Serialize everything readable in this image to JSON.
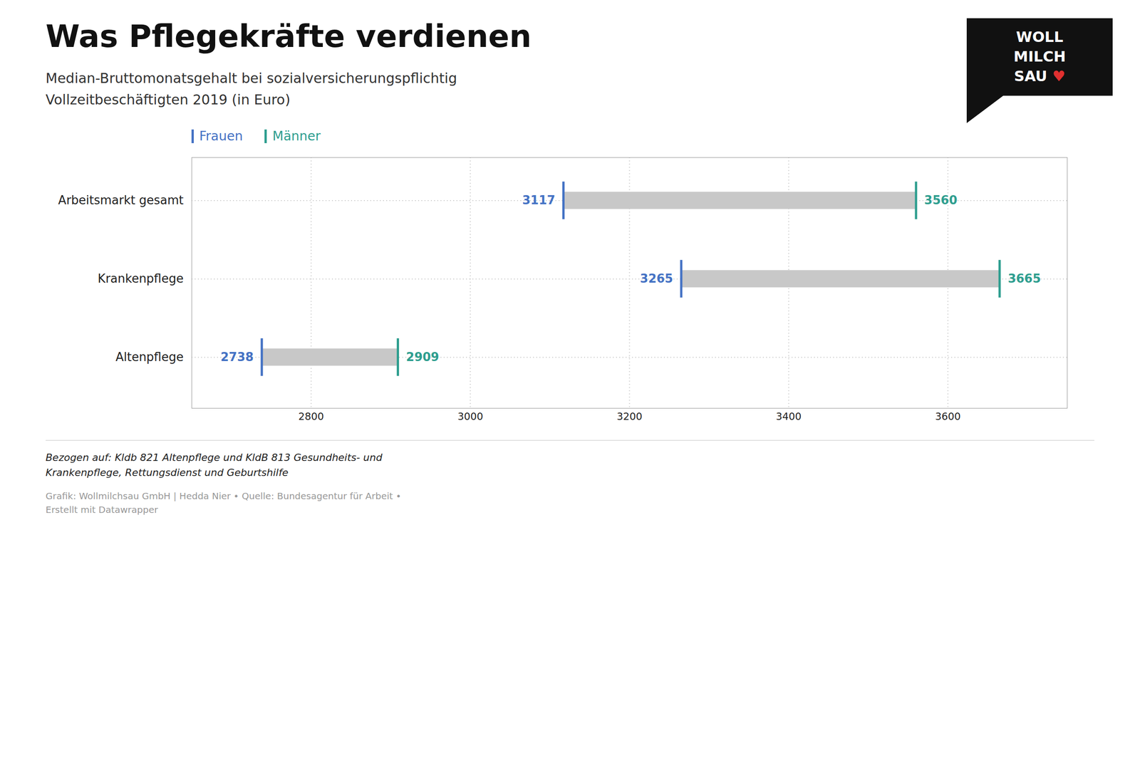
{
  "chart_data": {
    "type": "dumbbell",
    "orientation": "horizontal",
    "title": "Was Pflegekräfte verdienen",
    "subtitle": "Median-Bruttomonatsgehalt bei sozialversicherungspflichtig\nVollzeitbeschäftigten 2019 (in Euro)",
    "categories": [
      "Arbeitsmarkt gesamt",
      "Krankenpflege",
      "Altenpflege"
    ],
    "series": [
      {
        "name": "Frauen",
        "color": "#4472c4",
        "values": [
          3117,
          3265,
          2738
        ]
      },
      {
        "name": "Männer",
        "color": "#2e9e8f",
        "values": [
          3560,
          3665,
          2909
        ]
      }
    ],
    "color": "#c8c8c8",
    "xlim": [
      2650,
      3750
    ],
    "xticks": [
      2800,
      3000,
      3200,
      3400,
      3600
    ],
    "grid": true,
    "legend": "top",
    "data_labels": true,
    "footnote": "Bezogen auf: Kldb 821 Altenpflege und KldB 813 Gesundheits- und\nKrankenpflege, Rettungsdienst und Geburtshilfe",
    "source": "Grafik: Wollmilchsau GmbH | Hedda Nier • Quelle: Bundesagentur für Arbeit •\nErstellt mit Datawrapper",
    "logo": {
      "lines": [
        "WOLL",
        "MILCH",
        "SAU ♥"
      ],
      "color": "#111111",
      "heart_color": "#e03030"
    }
  }
}
